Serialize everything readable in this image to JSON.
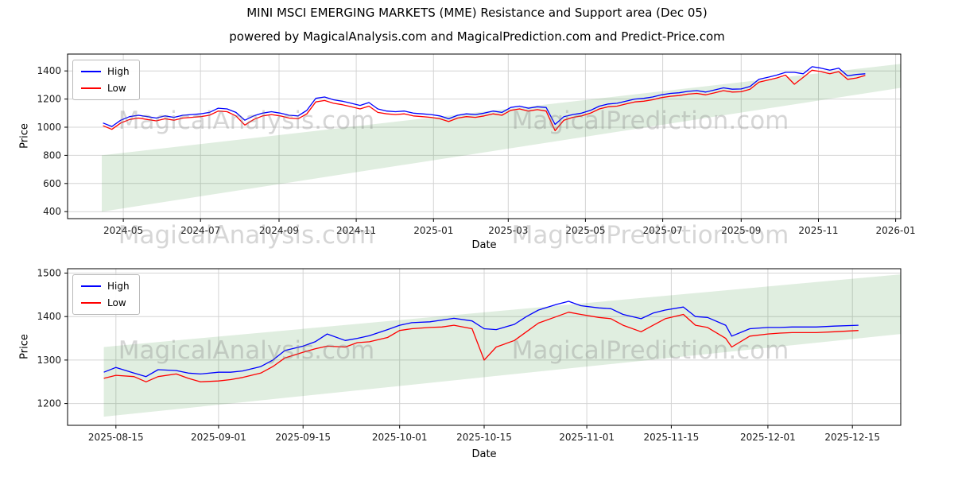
{
  "title": "MINI MSCI EMERGING MARKETS (MME) Resistance and Support area (Dec 05)",
  "subtitle": "powered by MagicalAnalysis.com and MagicalPrediction.com and Predict-Price.com",
  "watermarks": {
    "left": "MagicalAnalysis.com",
    "right": "MagicalPrediction.com"
  },
  "chart_data": [
    {
      "type": "line",
      "name": "full-history",
      "xlabel": "Date",
      "ylabel": "Price",
      "grid": true,
      "legend_position": "upper left",
      "xlim": [
        "2024-03-18",
        "2026-01-05"
      ],
      "ylim": [
        350,
        1520
      ],
      "y_ticks": [
        400,
        600,
        800,
        1000,
        1200,
        1400
      ],
      "x_ticks": [
        {
          "label": "2024-05",
          "date": "2024-05-01"
        },
        {
          "label": "2024-07",
          "date": "2024-07-01"
        },
        {
          "label": "2024-09",
          "date": "2024-09-01"
        },
        {
          "label": "2024-11",
          "date": "2024-11-01"
        },
        {
          "label": "2025-01",
          "date": "2025-01-01"
        },
        {
          "label": "2025-03",
          "date": "2025-03-01"
        },
        {
          "label": "2025-05",
          "date": "2025-05-01"
        },
        {
          "label": "2025-07",
          "date": "2025-07-01"
        },
        {
          "label": "2025-09",
          "date": "2025-09-01"
        },
        {
          "label": "2025-11",
          "date": "2025-11-01"
        },
        {
          "label": "2026-01",
          "date": "2026-01-01"
        }
      ],
      "band": {
        "name": "support-resistance-area",
        "color": "#2e8b2e",
        "opacity": 0.15,
        "x": [
          "2024-04-14",
          "2026-01-05"
        ],
        "lower": [
          400,
          1280
        ],
        "upper": [
          800,
          1450
        ]
      },
      "x": [
        "2024-04-15",
        "2024-04-22",
        "2024-04-29",
        "2024-05-06",
        "2024-05-13",
        "2024-05-20",
        "2024-05-27",
        "2024-06-03",
        "2024-06-10",
        "2024-06-17",
        "2024-06-24",
        "2024-07-01",
        "2024-07-08",
        "2024-07-15",
        "2024-07-22",
        "2024-07-29",
        "2024-08-05",
        "2024-08-12",
        "2024-08-19",
        "2024-08-26",
        "2024-09-02",
        "2024-09-09",
        "2024-09-16",
        "2024-09-23",
        "2024-09-30",
        "2024-10-07",
        "2024-10-14",
        "2024-10-21",
        "2024-10-28",
        "2024-11-04",
        "2024-11-11",
        "2024-11-18",
        "2024-11-25",
        "2024-12-02",
        "2024-12-09",
        "2024-12-16",
        "2024-12-23",
        "2024-12-30",
        "2025-01-06",
        "2025-01-13",
        "2025-01-20",
        "2025-01-27",
        "2025-02-03",
        "2025-02-10",
        "2025-02-17",
        "2025-02-24",
        "2025-03-03",
        "2025-03-10",
        "2025-03-17",
        "2025-03-24",
        "2025-03-31",
        "2025-04-07",
        "2025-04-14",
        "2025-04-21",
        "2025-04-28",
        "2025-05-05",
        "2025-05-12",
        "2025-05-19",
        "2025-05-26",
        "2025-06-02",
        "2025-06-09",
        "2025-06-16",
        "2025-06-23",
        "2025-06-30",
        "2025-07-07",
        "2025-07-14",
        "2025-07-21",
        "2025-07-28",
        "2025-08-04",
        "2025-08-11",
        "2025-08-18",
        "2025-08-25",
        "2025-09-01",
        "2025-09-08",
        "2025-09-15",
        "2025-09-22",
        "2025-09-29",
        "2025-10-06",
        "2025-10-13",
        "2025-10-20",
        "2025-10-27",
        "2025-11-03",
        "2025-11-10",
        "2025-11-17",
        "2025-11-24",
        "2025-12-01",
        "2025-12-08"
      ],
      "series": [
        {
          "name": "High",
          "color": "#0000ff",
          "values": [
            1030,
            1005,
            1050,
            1075,
            1085,
            1075,
            1065,
            1080,
            1070,
            1085,
            1090,
            1095,
            1105,
            1135,
            1130,
            1105,
            1050,
            1080,
            1100,
            1110,
            1100,
            1085,
            1080,
            1120,
            1205,
            1215,
            1195,
            1185,
            1170,
            1155,
            1175,
            1130,
            1115,
            1110,
            1115,
            1100,
            1095,
            1090,
            1080,
            1060,
            1085,
            1095,
            1090,
            1100,
            1115,
            1105,
            1140,
            1150,
            1135,
            1145,
            1140,
            1020,
            1075,
            1090,
            1100,
            1120,
            1150,
            1165,
            1170,
            1185,
            1200,
            1205,
            1215,
            1230,
            1240,
            1245,
            1255,
            1260,
            1250,
            1265,
            1280,
            1270,
            1272,
            1290,
            1340,
            1355,
            1370,
            1390,
            1390,
            1380,
            1430,
            1420,
            1405,
            1420,
            1365,
            1375,
            1380
          ]
        },
        {
          "name": "Low",
          "color": "#ff0000",
          "values": [
            1010,
            985,
            1030,
            1055,
            1065,
            1055,
            1045,
            1060,
            1050,
            1065,
            1070,
            1075,
            1085,
            1115,
            1110,
            1080,
            1015,
            1055,
            1080,
            1090,
            1080,
            1065,
            1060,
            1095,
            1180,
            1190,
            1170,
            1160,
            1145,
            1130,
            1150,
            1105,
            1095,
            1090,
            1095,
            1080,
            1075,
            1070,
            1060,
            1040,
            1065,
            1075,
            1070,
            1080,
            1095,
            1085,
            1120,
            1130,
            1115,
            1125,
            1115,
            975,
            1050,
            1070,
            1080,
            1100,
            1130,
            1145,
            1150,
            1165,
            1180,
            1185,
            1195,
            1210,
            1220,
            1225,
            1235,
            1240,
            1230,
            1245,
            1260,
            1250,
            1252,
            1270,
            1320,
            1335,
            1350,
            1370,
            1305,
            1355,
            1405,
            1395,
            1380,
            1395,
            1340,
            1350,
            1368
          ]
        }
      ]
    },
    {
      "type": "line",
      "name": "recent-detail",
      "xlabel": "Date",
      "ylabel": "Price",
      "grid": true,
      "legend_position": "upper left",
      "xlim": [
        "2025-08-07",
        "2025-12-23"
      ],
      "ylim": [
        1150,
        1510
      ],
      "y_ticks": [
        1200,
        1300,
        1400,
        1500
      ],
      "x_ticks": [
        {
          "label": "2025-08-15",
          "date": "2025-08-15"
        },
        {
          "label": "2025-09-01",
          "date": "2025-09-01"
        },
        {
          "label": "2025-09-15",
          "date": "2025-09-15"
        },
        {
          "label": "2025-10-01",
          "date": "2025-10-01"
        },
        {
          "label": "2025-10-15",
          "date": "2025-10-15"
        },
        {
          "label": "2025-11-01",
          "date": "2025-11-01"
        },
        {
          "label": "2025-11-15",
          "date": "2025-11-15"
        },
        {
          "label": "2025-12-01",
          "date": "2025-12-01"
        },
        {
          "label": "2025-12-15",
          "date": "2025-12-15"
        }
      ],
      "band": {
        "name": "support-resistance-area",
        "color": "#2e8b2e",
        "opacity": 0.15,
        "x": [
          "2025-08-13",
          "2025-12-23"
        ],
        "lower": [
          1170,
          1360
        ],
        "upper": [
          1330,
          1497
        ]
      },
      "x": [
        "2025-08-13",
        "2025-08-15",
        "2025-08-18",
        "2025-08-20",
        "2025-08-22",
        "2025-08-25",
        "2025-08-27",
        "2025-08-29",
        "2025-09-01",
        "2025-09-03",
        "2025-09-05",
        "2025-09-08",
        "2025-09-10",
        "2025-09-12",
        "2025-09-15",
        "2025-09-17",
        "2025-09-19",
        "2025-09-22",
        "2025-09-24",
        "2025-09-26",
        "2025-09-29",
        "2025-10-01",
        "2025-10-03",
        "2025-10-06",
        "2025-10-08",
        "2025-10-10",
        "2025-10-13",
        "2025-10-15",
        "2025-10-17",
        "2025-10-20",
        "2025-10-22",
        "2025-10-24",
        "2025-10-27",
        "2025-10-29",
        "2025-10-31",
        "2025-11-03",
        "2025-11-05",
        "2025-11-07",
        "2025-11-10",
        "2025-11-12",
        "2025-11-14",
        "2025-11-17",
        "2025-11-19",
        "2025-11-21",
        "2025-11-24",
        "2025-11-25",
        "2025-11-28",
        "2025-12-01",
        "2025-12-03",
        "2025-12-05",
        "2025-12-09",
        "2025-12-12",
        "2025-12-16"
      ],
      "series": [
        {
          "name": "High",
          "color": "#0000ff",
          "values": [
            1272,
            1283,
            1270,
            1262,
            1278,
            1276,
            1270,
            1268,
            1272,
            1272,
            1275,
            1285,
            1300,
            1322,
            1332,
            1342,
            1360,
            1345,
            1350,
            1356,
            1370,
            1380,
            1386,
            1388,
            1392,
            1396,
            1390,
            1372,
            1370,
            1382,
            1400,
            1415,
            1428,
            1435,
            1425,
            1420,
            1418,
            1405,
            1395,
            1408,
            1415,
            1422,
            1400,
            1398,
            1380,
            1355,
            1372,
            1375,
            1375,
            1376,
            1376,
            1378,
            1380
          ]
        },
        {
          "name": "Low",
          "color": "#ff0000",
          "values": [
            1258,
            1265,
            1262,
            1250,
            1262,
            1268,
            1258,
            1250,
            1252,
            1255,
            1260,
            1270,
            1285,
            1305,
            1318,
            1326,
            1332,
            1330,
            1340,
            1342,
            1352,
            1368,
            1372,
            1375,
            1376,
            1380,
            1372,
            1300,
            1330,
            1345,
            1365,
            1385,
            1400,
            1410,
            1405,
            1398,
            1395,
            1380,
            1365,
            1380,
            1395,
            1405,
            1380,
            1375,
            1350,
            1330,
            1355,
            1360,
            1362,
            1363,
            1363,
            1365,
            1368
          ]
        }
      ]
    }
  ]
}
